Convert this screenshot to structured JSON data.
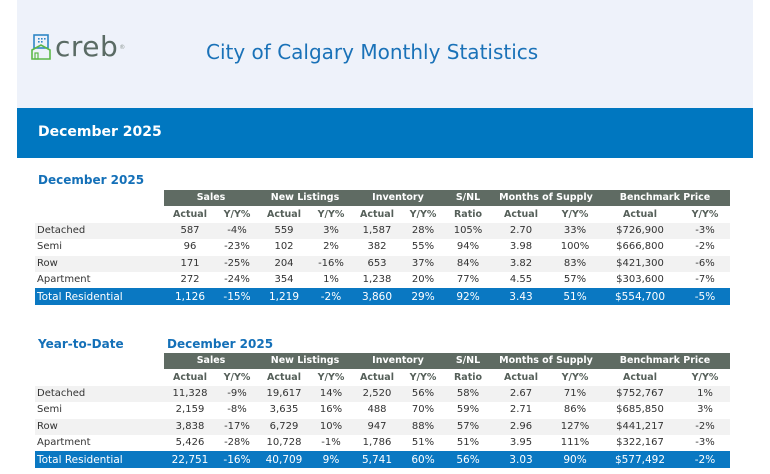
{
  "header": {
    "logo_text": "creb",
    "logo_mark": "®",
    "title": "City of Calgary Monthly Statistics"
  },
  "band": {
    "title": "December 2025"
  },
  "columns": {
    "groups": [
      "Sales",
      "New Listings",
      "Inventory",
      "S/NL",
      "Months of Supply",
      "Benchmark Price"
    ],
    "sub": [
      "Actual",
      "Y/Y%",
      "Actual",
      "Y/Y%",
      "Actual",
      "Y/Y%",
      "Ratio",
      "Actual",
      "Y/Y%",
      "Actual",
      "Y/Y%"
    ]
  },
  "monthly": {
    "title": "December 2025",
    "rows": [
      {
        "label": "Detached",
        "values": [
          "587",
          "-4%",
          "559",
          "3%",
          "1,587",
          "28%",
          "105%",
          "2.70",
          "33%",
          "$726,900",
          "-3%"
        ]
      },
      {
        "label": "Semi",
        "values": [
          "96",
          "-23%",
          "102",
          "2%",
          "382",
          "55%",
          "94%",
          "3.98",
          "100%",
          "$666,800",
          "-2%"
        ]
      },
      {
        "label": "Row",
        "values": [
          "171",
          "-25%",
          "204",
          "-16%",
          "653",
          "37%",
          "84%",
          "3.82",
          "83%",
          "$421,300",
          "-6%"
        ]
      },
      {
        "label": "Apartment",
        "values": [
          "272",
          "-24%",
          "354",
          "1%",
          "1,238",
          "20%",
          "77%",
          "4.55",
          "57%",
          "$303,600",
          "-7%"
        ]
      },
      {
        "label": "Total Residential",
        "values": [
          "1,126",
          "-15%",
          "1,219",
          "-2%",
          "3,860",
          "29%",
          "92%",
          "3.43",
          "51%",
          "$554,700",
          "-5%"
        ]
      }
    ]
  },
  "ytd": {
    "label": "Year-to-Date",
    "title": "December 2025",
    "rows": [
      {
        "label": "Detached",
        "values": [
          "11,328",
          "-9%",
          "19,617",
          "14%",
          "2,520",
          "56%",
          "58%",
          "2.67",
          "71%",
          "$752,767",
          "1%"
        ]
      },
      {
        "label": "Semi",
        "values": [
          "2,159",
          "-8%",
          "3,635",
          "16%",
          "488",
          "70%",
          "59%",
          "2.71",
          "86%",
          "$685,850",
          "3%"
        ]
      },
      {
        "label": "Row",
        "values": [
          "3,838",
          "-17%",
          "6,729",
          "10%",
          "947",
          "88%",
          "57%",
          "2.96",
          "127%",
          "$441,217",
          "-2%"
        ]
      },
      {
        "label": "Apartment",
        "values": [
          "5,426",
          "-28%",
          "10,728",
          "-1%",
          "1,786",
          "51%",
          "51%",
          "3.95",
          "111%",
          "$322,167",
          "-3%"
        ]
      },
      {
        "label": "Total Residential",
        "values": [
          "22,751",
          "-16%",
          "40,709",
          "9%",
          "5,741",
          "60%",
          "56%",
          "3.03",
          "90%",
          "$577,492",
          "-2%"
        ]
      }
    ]
  },
  "colors": {
    "brand_blue": "#0077c0",
    "header_bg": "#eef2fa",
    "group_header_bg": "#5f6b63",
    "title_blue": "#1a72b8"
  }
}
